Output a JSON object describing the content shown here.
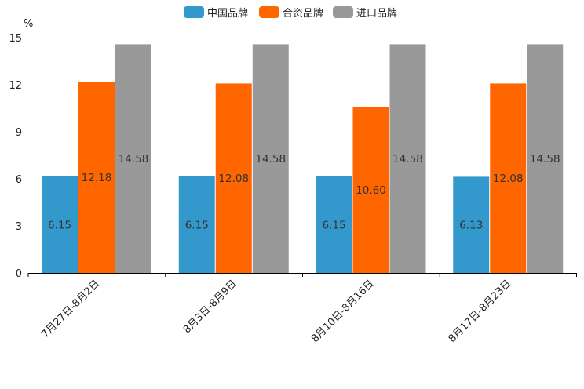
{
  "chart_data": {
    "type": "bar",
    "title": "",
    "xlabel": "",
    "ylabel": "%",
    "ylim": [
      0,
      15
    ],
    "yticks": [
      0,
      3,
      6,
      9,
      12,
      15
    ],
    "grid": false,
    "legend_position": "top-center",
    "categories": [
      "7月27日-8月2日",
      "8月3日-8月9日",
      "8月10日-8月16日",
      "8月17日-8月23日"
    ],
    "series": [
      {
        "name": "中国品牌",
        "color": "#3399cc",
        "values": [
          6.15,
          6.15,
          6.15,
          6.13
        ],
        "labels": [
          "6.15",
          "6.15",
          "6.15",
          "6.13"
        ]
      },
      {
        "name": "合资品牌",
        "color": "#ff6600",
        "values": [
          12.18,
          12.08,
          10.6,
          12.08
        ],
        "labels": [
          "12.18",
          "12.08",
          "10.60",
          "12.08"
        ]
      },
      {
        "name": "进口品牌",
        "color": "#999999",
        "values": [
          14.58,
          14.58,
          14.58,
          14.58
        ],
        "labels": [
          "14.58",
          "14.58",
          "14.58",
          "14.58"
        ]
      }
    ]
  }
}
